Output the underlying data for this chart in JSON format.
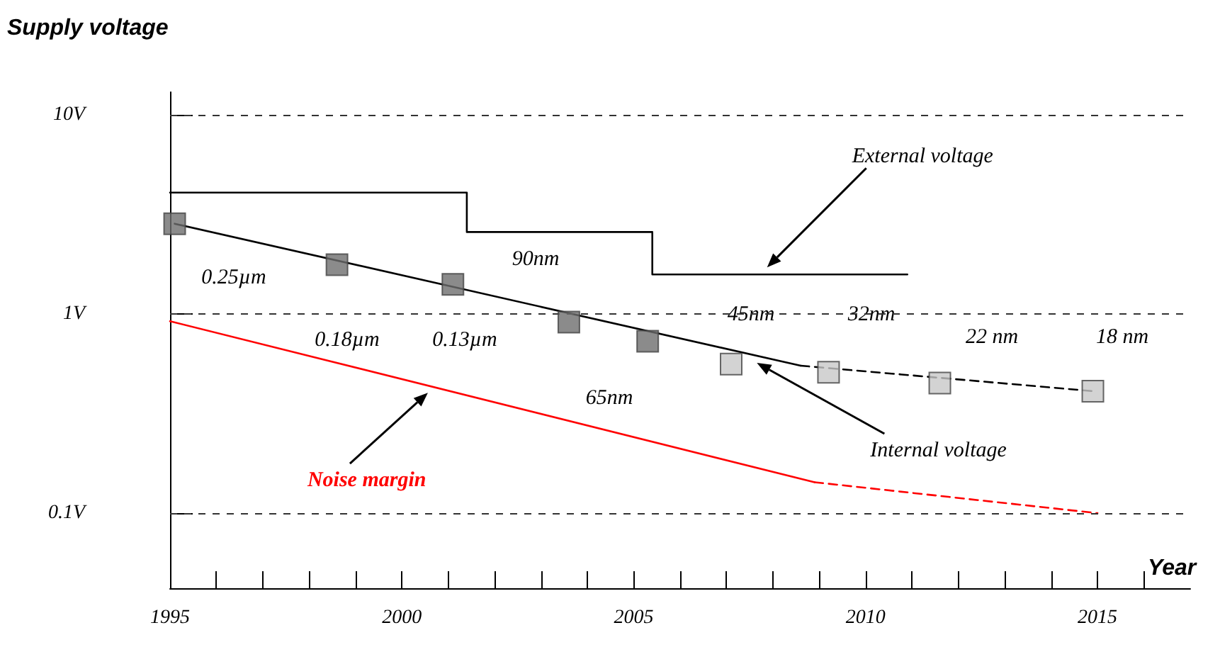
{
  "chart_data": {
    "type": "line",
    "xlabel": "Year",
    "ylabel": "Supply voltage",
    "log": "y",
    "grid": "y",
    "marker": "none",
    "line_style": "solid",
    "xlim": [
      1995,
      2017
    ],
    "xticks": [
      1995,
      {
        "value": 1996,
        "label": null
      },
      {
        "value": 1997,
        "label": null
      },
      {
        "value": 1998,
        "label": null
      },
      {
        "value": 1999,
        "label": null
      },
      2000,
      {
        "value": 2001,
        "label": null
      },
      {
        "value": 2002,
        "label": null
      },
      {
        "value": 2003,
        "label": null
      },
      {
        "value": 2004,
        "label": null
      },
      2005,
      {
        "value": 2006,
        "label": null
      },
      {
        "value": 2007,
        "label": null
      },
      {
        "value": 2008,
        "label": null
      },
      {
        "value": 2009,
        "label": null
      },
      2010,
      {
        "value": 2011,
        "label": null
      },
      {
        "value": 2012,
        "label": null
      },
      {
        "value": 2013,
        "label": null
      },
      {
        "value": 2014,
        "label": null
      },
      2015,
      {
        "value": 2016,
        "label": null
      }
    ],
    "ylim": [
      0.042,
      13
    ],
    "yticks": [
      {
        "value": 0.1,
        "label": "0.1V"
      },
      {
        "value": 1,
        "label": "1V"
      },
      {
        "value": 10,
        "label": "10V"
      }
    ],
    "series": [
      {
        "name": "External voltage",
        "type": "step",
        "color": "#000000",
        "x": [
          1995,
          2001.4,
          2005.4,
          2010.9
        ],
        "values": [
          4.07,
          2.58,
          1.58,
          1.58
        ]
      },
      {
        "name": "Internal voltage",
        "color": "#000000",
        "x": [
          1995.1,
          2008.6
        ],
        "values": [
          2.84,
          0.55
        ]
      },
      {
        "color": "#000000",
        "line_style": "dashed",
        "x": [
          2008.6,
          2014.9
        ],
        "values": [
          0.55,
          0.41
        ]
      },
      {
        "type": "scatter",
        "marker": "square",
        "color": "#6e6e6e",
        "x": [
          1995.1,
          1998.6,
          2001.1,
          2003.6,
          2005.3
        ],
        "values": [
          2.84,
          1.77,
          1.41,
          0.91,
          0.73
        ]
      },
      {
        "type": "scatter",
        "marker": "square",
        "color": "#c8c8c8",
        "x": [
          2007.1,
          2009.2,
          2011.6,
          2014.9
        ],
        "values": [
          0.56,
          0.51,
          0.45,
          0.41
        ]
      },
      {
        "name": "Noise margin",
        "color": "#ff0000",
        "x": [
          1995,
          2008.9
        ],
        "values": [
          0.92,
          0.143
        ]
      },
      {
        "color": "#ff0000",
        "line_style": "dashed",
        "x": [
          2008.9,
          2015
        ],
        "values": [
          0.143,
          0.1
        ]
      }
    ],
    "annotations": [
      "0.25µm",
      "0.18µm",
      "0.13µm",
      "90nm",
      "65nm",
      "45nm",
      "32nm",
      "22 nm",
      "18 nm"
    ]
  }
}
